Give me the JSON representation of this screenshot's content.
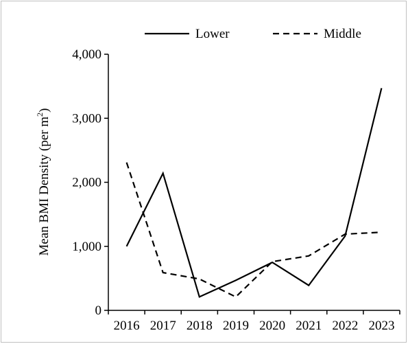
{
  "chart_data": {
    "type": "line",
    "x": [
      "2016",
      "2017",
      "2018",
      "2019",
      "2020",
      "2021",
      "2022",
      "2023"
    ],
    "series": [
      {
        "name": "Lower",
        "style": "solid",
        "values": [
          1000,
          2140,
          210,
          470,
          750,
          390,
          1160,
          3470
        ]
      },
      {
        "name": "Middle",
        "style": "dashed",
        "values": [
          2310,
          590,
          490,
          210,
          760,
          850,
          1190,
          1220
        ]
      }
    ],
    "ylabel": "Mean BMI Density (per m",
    "ylabel_superscript": "2",
    "ylabel_suffix": ")",
    "ylim": [
      0,
      4000
    ],
    "yticks": [
      0,
      1000,
      2000,
      3000,
      4000
    ],
    "ytick_labels": [
      "0",
      "1,000",
      "2,000",
      "3,000",
      "4,000"
    ],
    "grid": false,
    "legend_position": "top",
    "line_color": "#000000"
  }
}
